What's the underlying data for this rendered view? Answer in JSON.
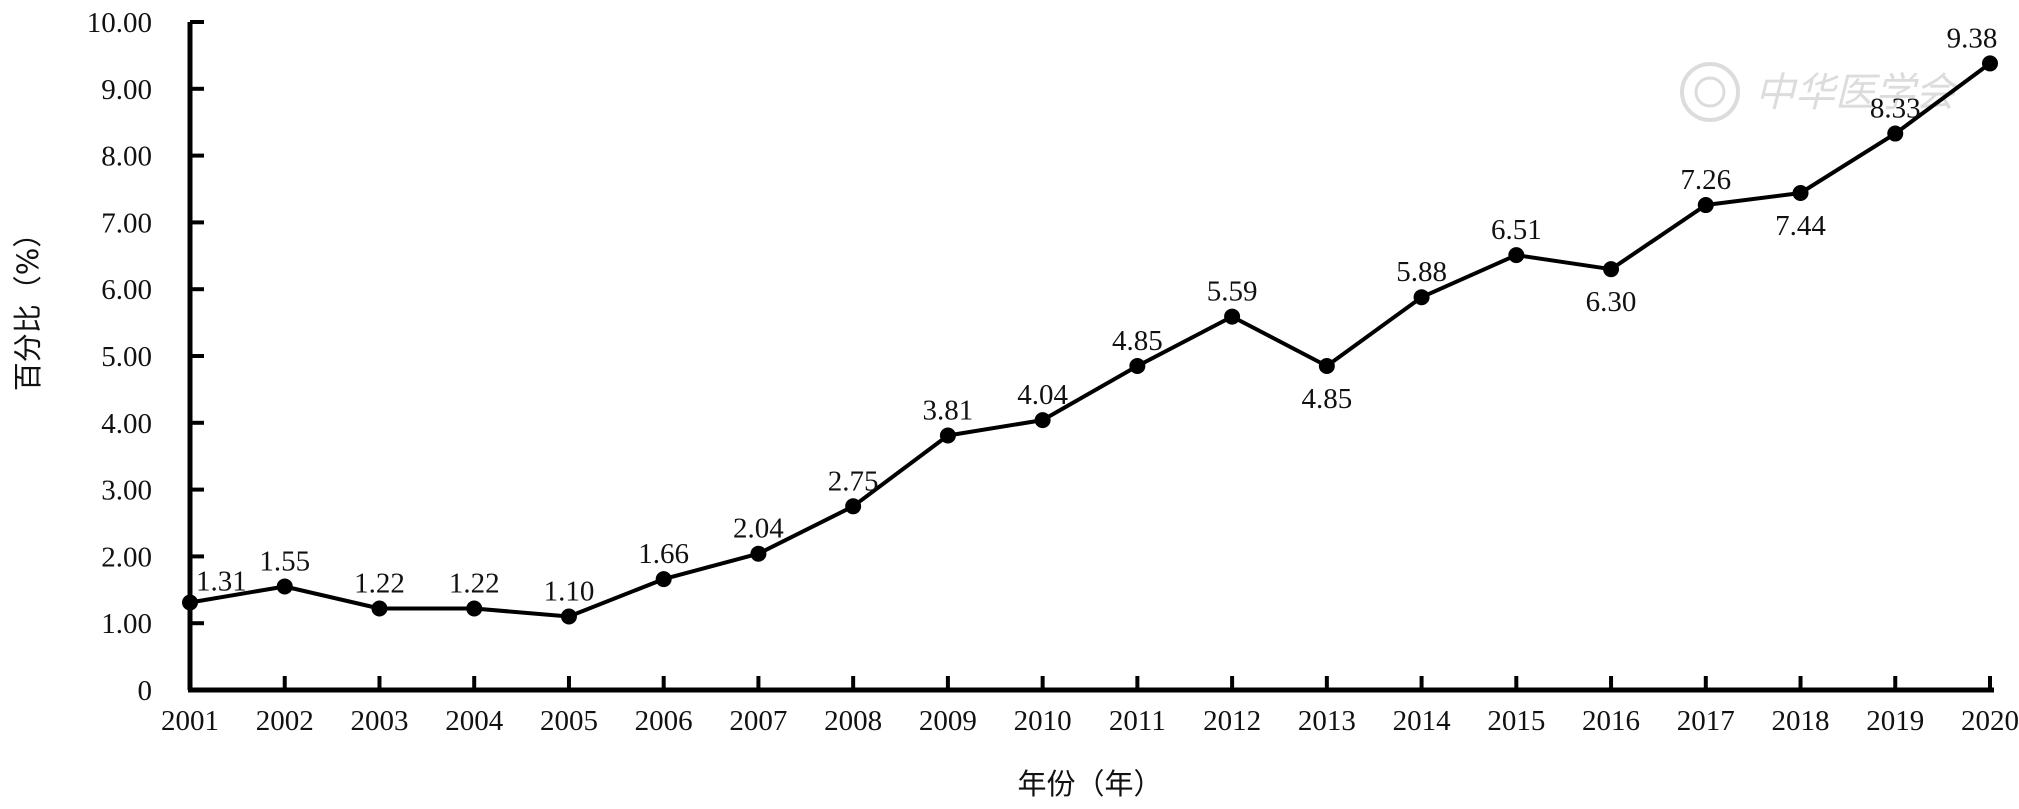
{
  "chart_data": {
    "type": "line",
    "title": "",
    "xlabel": "年份（年）",
    "ylabel": "百分比（%）",
    "categories": [
      "2001",
      "2002",
      "2003",
      "2004",
      "2005",
      "2006",
      "2007",
      "2008",
      "2009",
      "2010",
      "2011",
      "2012",
      "2013",
      "2014",
      "2015",
      "2016",
      "2017",
      "2018",
      "2019",
      "2020"
    ],
    "series": [
      {
        "values": [
          1.31,
          1.55,
          1.22,
          1.22,
          1.1,
          1.66,
          2.04,
          2.75,
          3.81,
          4.04,
          4.85,
          5.59,
          4.85,
          5.88,
          6.51,
          6.3,
          7.26,
          7.44,
          8.33,
          9.38
        ],
        "labels": [
          "1.31",
          "1.55",
          "1.22",
          "1.22",
          "1.10",
          "1.66",
          "2.04",
          "2.75",
          "3.81",
          "4.04",
          "4.85",
          "5.59",
          "4.85",
          "5.88",
          "6.51",
          "6.30",
          "7.26",
          "7.44",
          "8.33",
          "9.38"
        ],
        "label_positions": [
          "right",
          "above",
          "above",
          "above",
          "above",
          "above",
          "above",
          "above",
          "above",
          "above",
          "above",
          "above",
          "below",
          "above",
          "above",
          "below",
          "above",
          "below",
          "above",
          "above"
        ]
      }
    ],
    "yticks": [
      "0",
      "1.00",
      "2.00",
      "3.00",
      "4.00",
      "5.00",
      "6.00",
      "7.00",
      "8.00",
      "9.00",
      "10.00"
    ],
    "ylim": [
      0,
      10
    ],
    "grid": false,
    "legend": "none",
    "line_color": "#000000",
    "marker": "filled-circle",
    "watermark": "中华医学会"
  }
}
